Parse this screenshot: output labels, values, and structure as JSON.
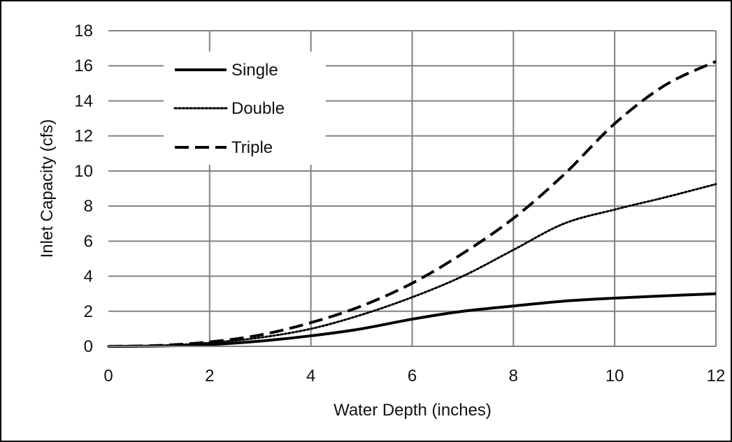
{
  "chart_data": {
    "type": "line",
    "title": "",
    "xlabel": "Water Depth (inches)",
    "ylabel": "Inlet Capacity (cfs)",
    "xlim": [
      0,
      12
    ],
    "ylim": [
      0,
      18
    ],
    "xticks": [
      0,
      2,
      4,
      6,
      8,
      10,
      12
    ],
    "yticks": [
      0,
      2,
      4,
      6,
      8,
      10,
      12,
      14,
      16,
      18
    ],
    "grid": true,
    "legend_position": "top-left",
    "x": [
      0,
      1,
      2,
      3,
      4,
      5,
      6,
      7,
      8,
      9,
      10,
      11,
      12
    ],
    "series": [
      {
        "name": "Single",
        "style": "solid",
        "color": "#000000",
        "values": [
          0,
          0.02,
          0.1,
          0.3,
          0.6,
          1.0,
          1.55,
          2.0,
          2.3,
          2.58,
          2.75,
          2.88,
          3.0
        ]
      },
      {
        "name": "Double",
        "style": "dotted",
        "color": "#000000",
        "values": [
          0,
          0.04,
          0.2,
          0.5,
          1.0,
          1.8,
          2.8,
          4.0,
          5.5,
          7.0,
          7.8,
          8.5,
          9.25
        ]
      },
      {
        "name": "Triple",
        "style": "dashed",
        "color": "#000000",
        "values": [
          0,
          0.05,
          0.25,
          0.65,
          1.35,
          2.3,
          3.6,
          5.3,
          7.3,
          9.8,
          12.7,
          14.9,
          16.25
        ]
      }
    ]
  },
  "colors": {
    "background": "#ffffff",
    "grid": "#808080",
    "series_line": "#000000",
    "frame": "#000000"
  }
}
